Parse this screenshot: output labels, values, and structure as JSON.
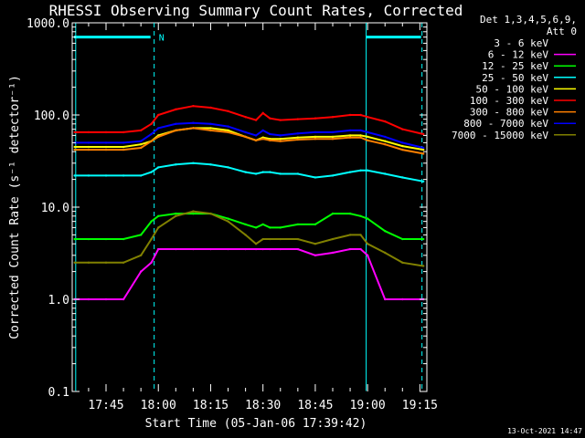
{
  "chart_data": {
    "type": "line",
    "title": "RHESSI Observing Summary Count Rates, Corrected",
    "xlabel": "Start Time (05-Jan-06 17:39:42)",
    "ylabel": "Corrected Count Rate (s⁻¹ detector⁻¹)",
    "yscale": "log",
    "ylim": [
      0.1,
      1000.0
    ],
    "xlim_minutes": [
      -4.7,
      97.0
    ],
    "x_ticks": [
      {
        "minute": 5,
        "label": "17:45"
      },
      {
        "minute": 20,
        "label": "18:00"
      },
      {
        "minute": 35,
        "label": "18:15"
      },
      {
        "minute": 50,
        "label": "18:30"
      },
      {
        "minute": 65,
        "label": "18:45"
      },
      {
        "minute": 80,
        "label": "19:00"
      },
      {
        "minute": 95,
        "label": "19:15"
      }
    ],
    "y_ticks": [
      {
        "value": 0.1,
        "label": "0.1"
      },
      {
        "value": 1.0,
        "label": "1.0"
      },
      {
        "value": 10.0,
        "label": "10.0"
      },
      {
        "value": 100.0,
        "label": "100.0"
      },
      {
        "value": 1000.0,
        "label": "1000.0"
      }
    ],
    "legend_header": [
      "Det 1,3,4,5,6,9,",
      "Att 0"
    ],
    "legend_position": "right",
    "x": [
      -4,
      0,
      5,
      10,
      15,
      18,
      20,
      25,
      30,
      35,
      40,
      45,
      48,
      50,
      52,
      55,
      60,
      65,
      70,
      75,
      78,
      80,
      85,
      90,
      96
    ],
    "series": [
      {
        "name": "3 - 6 keV",
        "color": "#000000",
        "values": [
          0.1,
          0.1,
          0.1,
          0.1,
          0.1,
          0.1,
          0.1,
          0.1,
          0.1,
          0.1,
          0.1,
          0.1,
          0.1,
          0.1,
          0.1,
          0.1,
          0.1,
          0.1,
          0.1,
          0.1,
          0.1,
          0.1,
          0.1,
          0.1,
          0.1
        ]
      },
      {
        "name": "6 - 12 keV",
        "color": "#ff00ff",
        "values": [
          1.0,
          1.0,
          1.0,
          1.0,
          2.0,
          2.5,
          3.5,
          3.5,
          3.5,
          3.5,
          3.5,
          3.5,
          3.5,
          3.5,
          3.5,
          3.5,
          3.5,
          3.0,
          3.2,
          3.5,
          3.5,
          3.0,
          1.0,
          1.0,
          1.0
        ]
      },
      {
        "name": "12 - 25 keV",
        "color": "#00ff00",
        "values": [
          4.5,
          4.5,
          4.5,
          4.5,
          5.0,
          7.0,
          8.0,
          8.5,
          8.5,
          8.5,
          7.5,
          6.5,
          6.0,
          6.5,
          6.0,
          6.0,
          6.5,
          6.5,
          8.5,
          8.5,
          8.0,
          7.5,
          5.5,
          4.5,
          4.5
        ]
      },
      {
        "name": "25 - 50 keV",
        "color": "#00ffff",
        "values": [
          22,
          22,
          22,
          22,
          22,
          24,
          27,
          29,
          30,
          29,
          27,
          24,
          23,
          24,
          24,
          23,
          23,
          21,
          22,
          24,
          25,
          25,
          23,
          21,
          19
        ]
      },
      {
        "name": "50 - 100 keV",
        "color": "#ffff00",
        "values": [
          45,
          45,
          45,
          45,
          48,
          52,
          60,
          68,
          72,
          72,
          68,
          58,
          53,
          57,
          55,
          55,
          57,
          58,
          58,
          60,
          60,
          58,
          52,
          46,
          42
        ]
      },
      {
        "name": "100 - 300 keV",
        "color": "#ff0000",
        "values": [
          65,
          65,
          65,
          65,
          68,
          80,
          100,
          115,
          125,
          120,
          110,
          95,
          88,
          105,
          92,
          88,
          90,
          92,
          95,
          100,
          100,
          95,
          85,
          70,
          62
        ]
      },
      {
        "name": "300 - 800 keV",
        "color": "#ff8000",
        "values": [
          42,
          42,
          42,
          42,
          44,
          52,
          58,
          68,
          72,
          68,
          65,
          58,
          53,
          55,
          53,
          52,
          54,
          55,
          55,
          57,
          57,
          53,
          48,
          42,
          38
        ]
      },
      {
        "name": "800 - 7000 keV",
        "color": "#0000ff",
        "values": [
          50,
          50,
          50,
          50,
          52,
          62,
          72,
          80,
          82,
          80,
          75,
          65,
          60,
          68,
          62,
          60,
          63,
          65,
          65,
          68,
          68,
          65,
          58,
          50,
          44
        ]
      },
      {
        "name": "7000 - 15000 keV",
        "color": "#808000",
        "values": [
          2.5,
          2.5,
          2.5,
          2.5,
          3.0,
          4.5,
          6.0,
          8.0,
          9.0,
          8.5,
          7.0,
          5.0,
          4.0,
          4.5,
          4.5,
          4.5,
          4.5,
          4.0,
          4.5,
          5.0,
          5.0,
          4.0,
          3.2,
          2.5,
          2.3
        ]
      }
    ],
    "attenuator_bars_at": 700,
    "annotations": [
      {
        "text": "N",
        "minute": 19.6
      },
      {
        "text": "13-Oct-2021 14:47",
        "position": "bottom-right"
      }
    ],
    "vertical_markers": [
      {
        "minute": -3.7,
        "style": "solid",
        "color": "#00ffff"
      },
      {
        "minute": 18.8,
        "style": "dashed",
        "color": "#00ffff"
      },
      {
        "minute": 79.6,
        "style": "solid",
        "color": "#00ffff"
      },
      {
        "minute": 95.6,
        "style": "dashed",
        "color": "#00ffff"
      }
    ]
  },
  "footer_date": "13-Oct-2021 14:47"
}
